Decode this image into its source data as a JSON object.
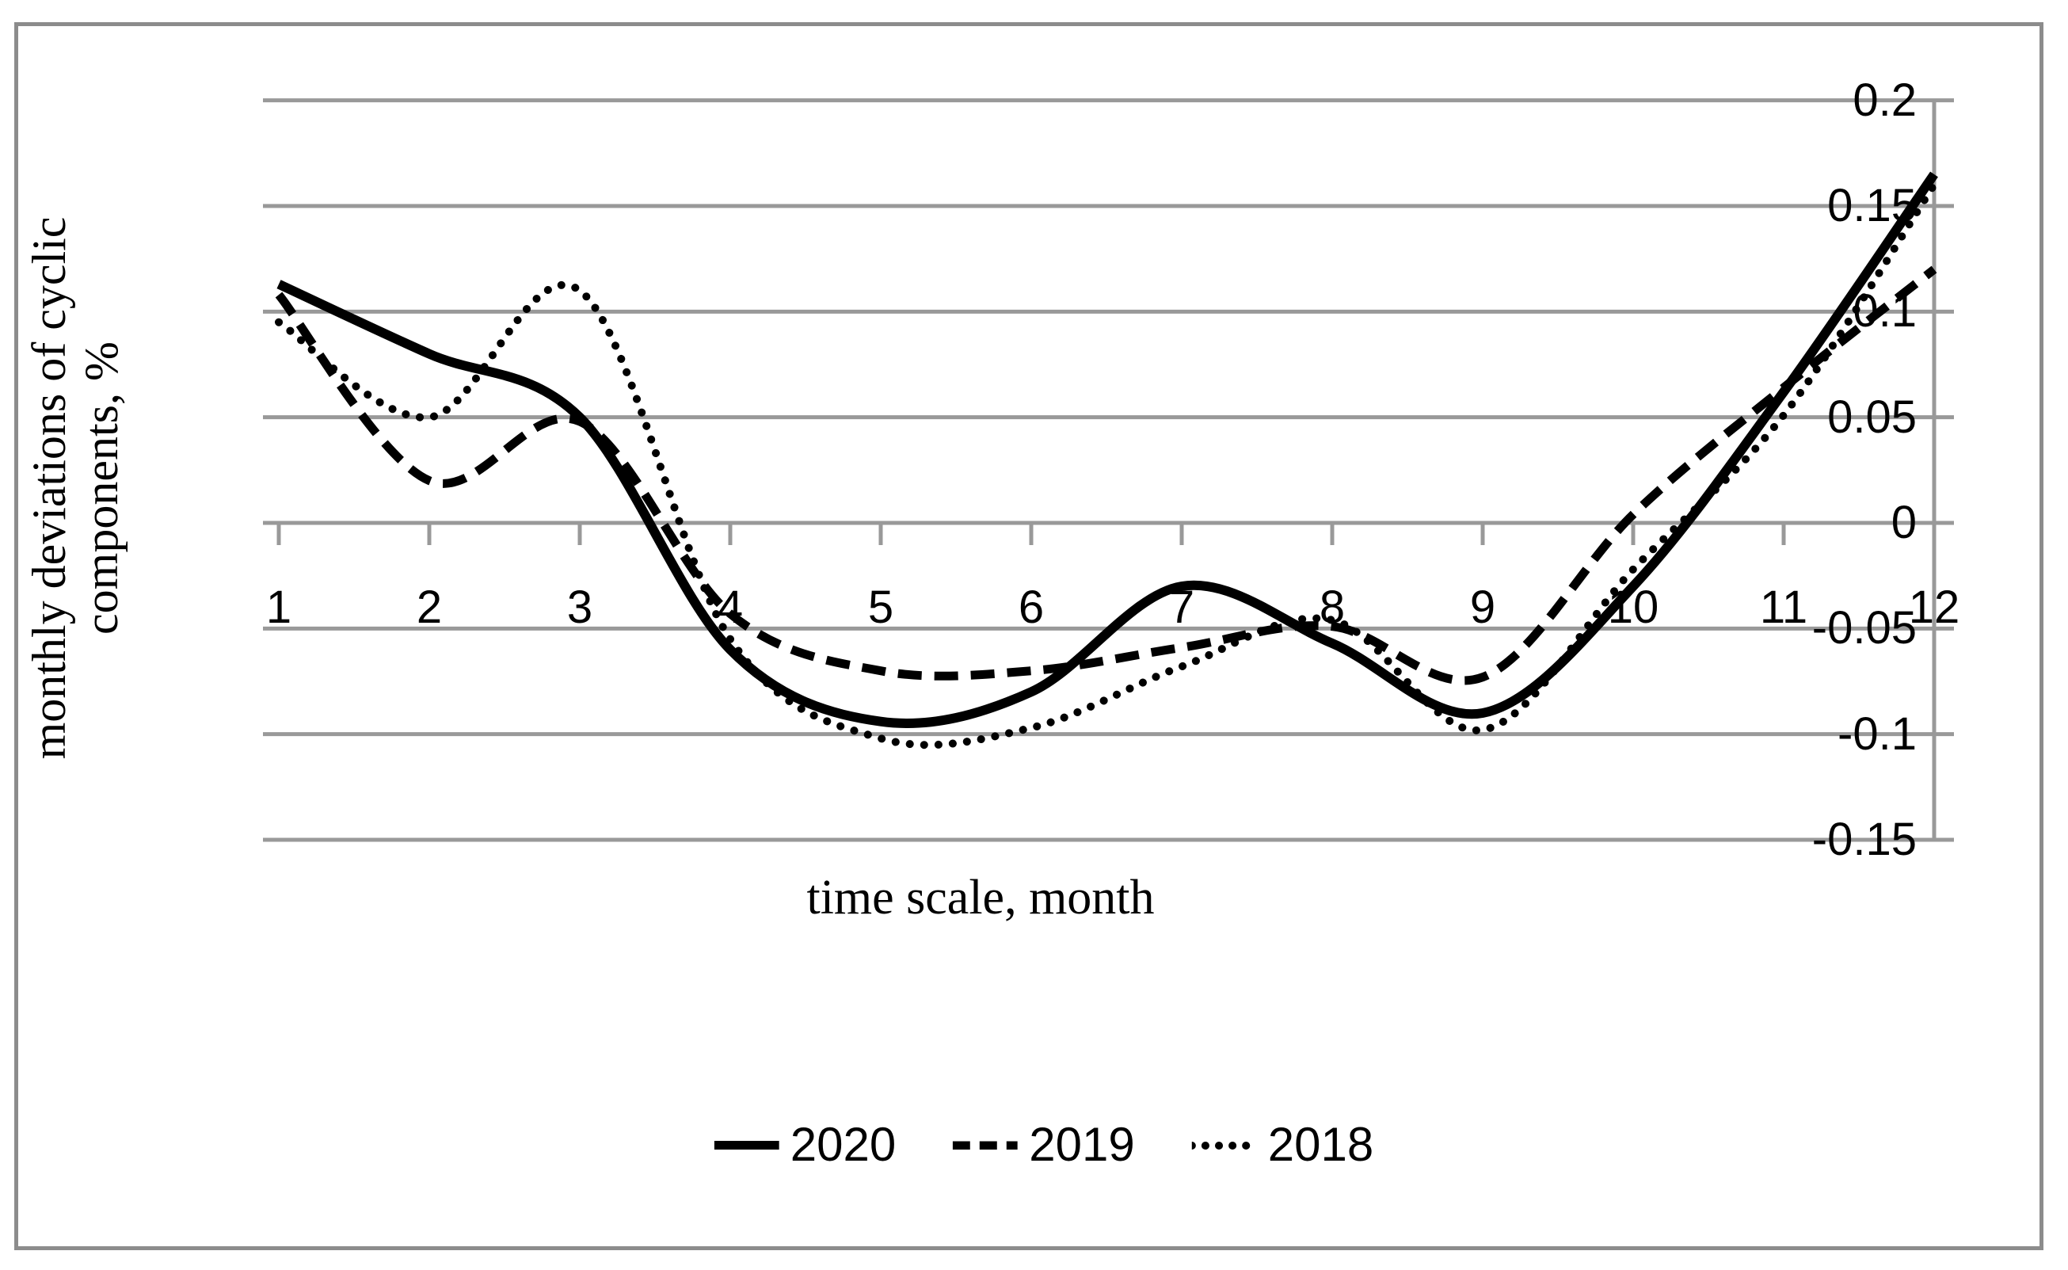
{
  "chart_data": {
    "type": "line",
    "title": "",
    "xlabel": "time scale, month",
    "ylabel": "monthly deviations of cyclic components, %",
    "ylabel_lines": [
      "monthly deviations of cyclic",
      "components, %"
    ],
    "x": [
      1,
      2,
      3,
      4,
      5,
      6,
      7,
      8,
      9,
      10,
      11,
      12
    ],
    "xtick_labels": [
      "1",
      "2",
      "3",
      "4",
      "5",
      "6",
      "7",
      "8",
      "9",
      "10",
      "11",
      "12"
    ],
    "yticks": [
      0.2,
      0.15,
      0.1,
      0.05,
      0,
      -0.05,
      -0.1,
      -0.15
    ],
    "ytick_labels": [
      "0.2",
      "0.15",
      "0.1",
      "0.05",
      "0",
      "-0.05",
      "-0.1",
      "-0.15"
    ],
    "ylim": [
      -0.15,
      0.2
    ],
    "xlim": [
      1,
      12
    ],
    "grid": true,
    "axis_position": "zero-x-right-y",
    "legend_position": "bottom",
    "series": [
      {
        "name": "2020",
        "style": "solid",
        "values": [
          0.113,
          0.08,
          0.05,
          -0.06,
          -0.094,
          -0.08,
          -0.03,
          -0.057,
          -0.09,
          -0.03,
          0.062,
          0.165
        ]
      },
      {
        "name": "2019",
        "style": "dashed",
        "values": [
          0.108,
          0.02,
          0.048,
          -0.043,
          -0.07,
          -0.07,
          -0.059,
          -0.049,
          -0.073,
          0.004,
          0.064,
          0.12
        ]
      },
      {
        "name": "2018",
        "style": "dotted",
        "values": [
          0.095,
          0.05,
          0.11,
          -0.055,
          -0.102,
          -0.097,
          -0.068,
          -0.046,
          -0.098,
          -0.022,
          0.051,
          0.16
        ]
      }
    ],
    "colors": {
      "line": "#000000",
      "grid": "#999999",
      "frame": "#8c8c8c"
    }
  },
  "legend": {
    "items": [
      {
        "label": "2020",
        "style": "solid"
      },
      {
        "label": "2019",
        "style": "dashed"
      },
      {
        "label": "2018",
        "style": "dotted"
      }
    ]
  },
  "titles": {
    "x_axis": "time scale, month",
    "y_axis_line1": "monthly deviations of cyclic",
    "y_axis_line2": "components, %"
  }
}
